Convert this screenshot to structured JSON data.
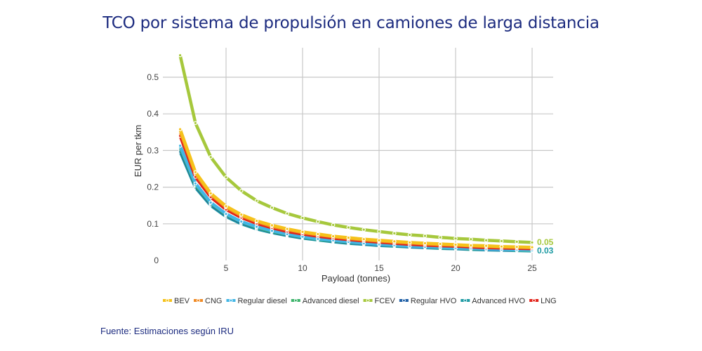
{
  "title": "TCO por sistema de propulsión en camiones de larga distancia",
  "source": "Fuente: Estimaciones según IRU",
  "chart_data": {
    "type": "line",
    "title": "TCO por sistema de propulsión en camiones de larga distancia",
    "xlabel": "Payload (tonnes)",
    "ylabel": "EUR per tkm",
    "xlim": [
      0,
      26
    ],
    "ylim": [
      0,
      0.55
    ],
    "xticks": [
      "5",
      "10",
      "15",
      "20",
      "25"
    ],
    "yticks": [
      "0",
      "0.1",
      "0.2",
      "0.3",
      "0.4",
      "0.5"
    ],
    "grid": true,
    "legend_position": "bottom",
    "x": [
      2,
      3,
      4,
      5,
      6,
      7,
      8,
      9,
      10,
      11,
      12,
      13,
      14,
      15,
      16,
      17,
      18,
      19,
      20,
      21,
      22,
      23,
      24,
      25
    ],
    "series": [
      {
        "name": "BEV",
        "color": "#f5c21b",
        "values": [
          0.358,
          0.241,
          0.183,
          0.148,
          0.125,
          0.108,
          0.096,
          0.086,
          0.078,
          0.072,
          0.066,
          0.062,
          0.058,
          0.055,
          0.052,
          0.049,
          0.047,
          0.045,
          0.043,
          0.041,
          0.04,
          0.038,
          0.037,
          0.036
        ]
      },
      {
        "name": "CNG",
        "color": "#f08a24",
        "values": [
          0.352,
          0.237,
          0.18,
          0.145,
          0.122,
          0.106,
          0.093,
          0.084,
          0.076,
          0.07,
          0.065,
          0.06,
          0.056,
          0.053,
          0.05,
          0.048,
          0.045,
          0.043,
          0.042,
          0.04,
          0.038,
          0.037,
          0.036,
          0.035
        ]
      },
      {
        "name": "Regular diesel",
        "color": "#41b6e6",
        "values": [
          0.313,
          0.21,
          0.158,
          0.127,
          0.106,
          0.092,
          0.081,
          0.072,
          0.065,
          0.059,
          0.055,
          0.051,
          0.047,
          0.044,
          0.042,
          0.039,
          0.037,
          0.036,
          0.034,
          0.033,
          0.031,
          0.03,
          0.029,
          0.028
        ]
      },
      {
        "name": "Advanced diesel",
        "color": "#3db36b",
        "values": [
          0.308,
          0.206,
          0.156,
          0.125,
          0.105,
          0.09,
          0.079,
          0.071,
          0.064,
          0.058,
          0.054,
          0.05,
          0.047,
          0.044,
          0.041,
          0.039,
          0.037,
          0.035,
          0.034,
          0.032,
          0.031,
          0.03,
          0.028,
          0.027
        ]
      },
      {
        "name": "FCEV",
        "color": "#a6c83c",
        "values": [
          0.56,
          0.375,
          0.282,
          0.227,
          0.19,
          0.163,
          0.144,
          0.128,
          0.116,
          0.106,
          0.097,
          0.09,
          0.084,
          0.079,
          0.074,
          0.07,
          0.067,
          0.063,
          0.06,
          0.058,
          0.055,
          0.053,
          0.051,
          0.049
        ]
      },
      {
        "name": "Regular HVO",
        "color": "#1f5fa6",
        "values": [
          0.303,
          0.203,
          0.153,
          0.123,
          0.103,
          0.089,
          0.078,
          0.07,
          0.063,
          0.058,
          0.053,
          0.049,
          0.046,
          0.043,
          0.041,
          0.038,
          0.036,
          0.035,
          0.033,
          0.032,
          0.03,
          0.029,
          0.028,
          0.027
        ]
      },
      {
        "name": "Advanced HVO",
        "color": "#1d9aa3",
        "values": [
          0.297,
          0.199,
          0.15,
          0.12,
          0.1,
          0.086,
          0.076,
          0.068,
          0.061,
          0.056,
          0.051,
          0.047,
          0.044,
          0.041,
          0.039,
          0.037,
          0.035,
          0.033,
          0.032,
          0.03,
          0.029,
          0.028,
          0.027,
          0.026
        ]
      },
      {
        "name": "LNG",
        "color": "#e2231a",
        "values": [
          0.34,
          0.228,
          0.173,
          0.139,
          0.117,
          0.101,
          0.089,
          0.079,
          0.072,
          0.066,
          0.061,
          0.057,
          0.053,
          0.05,
          0.047,
          0.044,
          0.042,
          0.04,
          0.039,
          0.037,
          0.035,
          0.034,
          0.033,
          0.032
        ]
      }
    ],
    "draw_order": [
      "Advanced HVO",
      "Regular HVO",
      "Advanced diesel",
      "Regular diesel",
      "LNG",
      "CNG",
      "BEV",
      "FCEV"
    ],
    "annotations": [
      {
        "text": "0.05",
        "series": "FCEV",
        "color": "#a6c83c"
      },
      {
        "text": "0.03",
        "series": "Advanced HVO",
        "color": "#1d9aa3"
      }
    ]
  }
}
